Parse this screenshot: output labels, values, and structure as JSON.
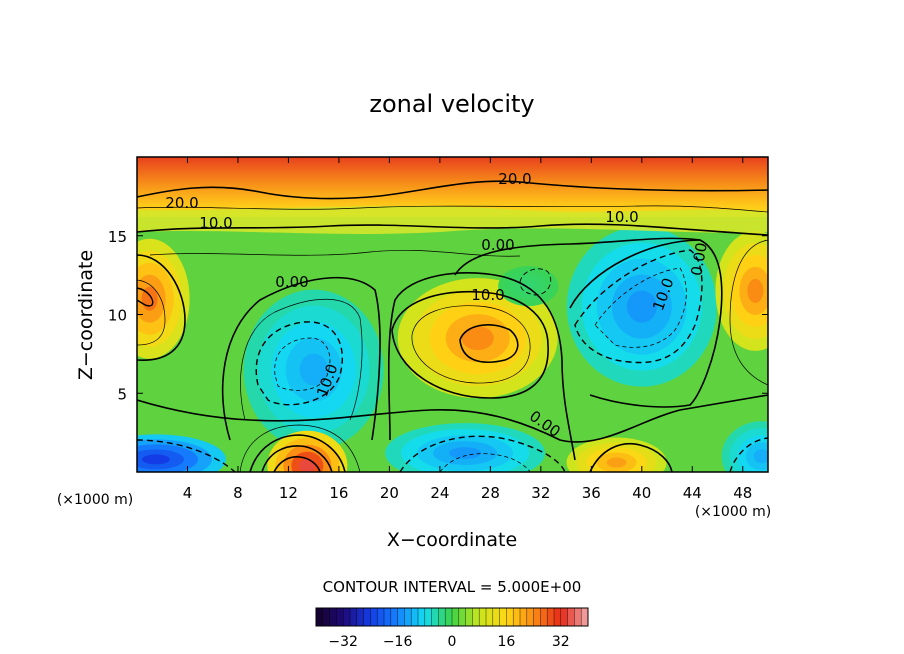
{
  "chart_data": {
    "type": "heatmap",
    "title": "zonal velocity",
    "xlabel": "X−coordinate",
    "ylabel": "Z−coordinate",
    "x_unit": "(×1000 m)",
    "z_unit": "(×1000 m)",
    "xlim": [
      0,
      50
    ],
    "ylim": [
      0,
      20
    ],
    "x_ticks": [
      "4",
      "8",
      "12",
      "16",
      "20",
      "24",
      "28",
      "32",
      "36",
      "40",
      "44",
      "48"
    ],
    "y_ticks": [
      "5",
      "10",
      "15"
    ],
    "contour_interval_label": "CONTOUR INTERVAL = 5.000E+00",
    "contour_labels": [
      "20.0",
      "20.0",
      "10.0",
      "10.0",
      "0.00",
      "0.00",
      "10.0",
      "0.00",
      "10.0",
      "10.0",
      "0.00"
    ],
    "colorbar": {
      "range": [
        -40,
        40
      ],
      "ticks": [
        "−32",
        "−16",
        "0",
        "16",
        "32"
      ],
      "tick_values": [
        -32,
        -16,
        0,
        16,
        32
      ]
    },
    "features": [
      {
        "x": 1.0,
        "z": 11.0,
        "u": 26
      },
      {
        "x": 14.0,
        "z": 6.5,
        "u": -12
      },
      {
        "x": 27.0,
        "z": 8.5,
        "u": 24
      },
      {
        "x": 40.0,
        "z": 10.5,
        "u": -14
      },
      {
        "x": 31.0,
        "z": 11.8,
        "u": -2
      },
      {
        "x": 13.5,
        "z": 0.4,
        "u": 34
      },
      {
        "x": 1.5,
        "z": 0.8,
        "u": -24
      },
      {
        "x": 26.0,
        "z": 1.2,
        "u": -14
      },
      {
        "x": 38.0,
        "z": 0.6,
        "u": 22
      },
      {
        "x": 49.5,
        "z": 1.0,
        "u": -12
      },
      {
        "x": 49.0,
        "z": 11.5,
        "u": 24
      }
    ]
  }
}
